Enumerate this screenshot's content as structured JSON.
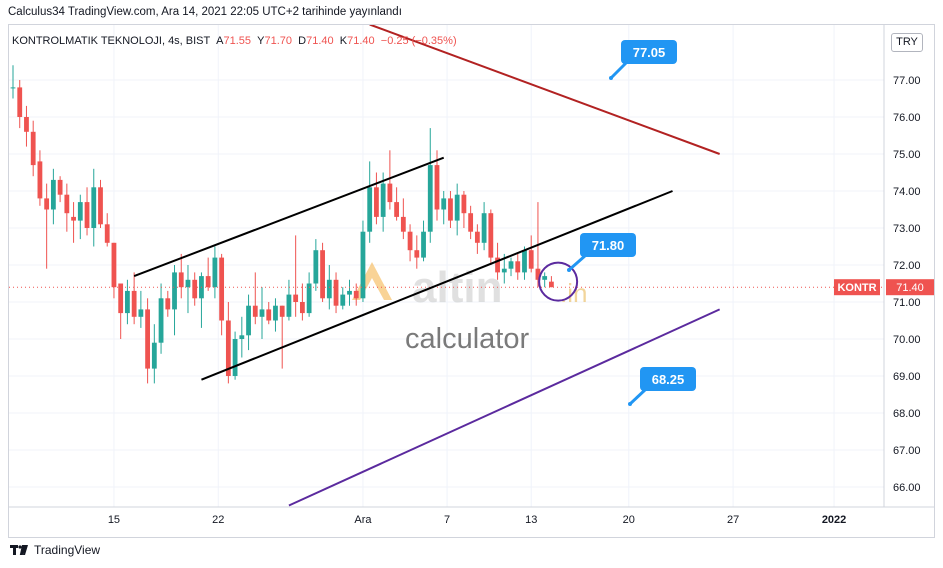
{
  "header": {
    "published": "Calculus34 TradingView.com, Ara 14, 2021 22:05 UTC+2 tarihinde yayınlandı"
  },
  "symbol": {
    "name": "KONTROLMATIK TEKNOLOJI, 4s, BIST",
    "a_label": "A",
    "a_value": "71.55",
    "y_label": "Y",
    "y_value": "71.70",
    "d_label": "D",
    "d_value": "71.40",
    "k_label": "K",
    "k_value": "71.40",
    "change": "−0.25 (−0.35%)"
  },
  "currency_label": "TRY",
  "footer": {
    "brand": "TradingView"
  },
  "colors": {
    "up": "#26a69a",
    "down": "#ef5350",
    "channel": "#000000",
    "red_line": "#b22222",
    "purple_line": "#5b2a9e",
    "callout": "#2196f3",
    "grid": "#f0f3fa",
    "axis_text": "#131722"
  },
  "chart_data": {
    "type": "candlestick",
    "title": "KONTROLMATIK TEKNOLOJI, 4s, BIST",
    "ylim": [
      65.5,
      78.5
    ],
    "x_ticks": [
      "15",
      "22",
      "Ara",
      "7",
      "13",
      "20",
      "27",
      "2022"
    ],
    "y_ticks": [
      "66.00",
      "67.00",
      "68.00",
      "69.00",
      "70.00",
      "71.00",
      "72.00",
      "73.00",
      "74.00",
      "75.00",
      "76.00",
      "77.00"
    ],
    "last_price": {
      "symbol": "KONTR",
      "value": 71.4
    },
    "callouts": [
      "77.05",
      "71.80",
      "68.25"
    ],
    "watermark": {
      "logo": "altin",
      "suffix": ".in",
      "tagline": "calculator"
    },
    "candles": [
      [
        76.8,
        77.4,
        76.5,
        76.8
      ],
      [
        76.8,
        77.0,
        75.7,
        76.0
      ],
      [
        76.0,
        76.3,
        75.2,
        75.6
      ],
      [
        75.6,
        75.9,
        74.4,
        74.7
      ],
      [
        74.8,
        75.1,
        73.6,
        73.8
      ],
      [
        73.8,
        74.2,
        71.9,
        73.5
      ],
      [
        73.5,
        74.6,
        73.1,
        74.3
      ],
      [
        74.3,
        74.4,
        73.7,
        73.9
      ],
      [
        73.9,
        74.2,
        72.9,
        73.4
      ],
      [
        73.3,
        73.7,
        72.6,
        73.2
      ],
      [
        73.2,
        73.9,
        72.7,
        73.7
      ],
      [
        73.7,
        74.1,
        72.8,
        73.0
      ],
      [
        73.0,
        74.6,
        72.5,
        74.1
      ],
      [
        74.1,
        74.3,
        73.0,
        73.1
      ],
      [
        73.1,
        73.4,
        72.5,
        72.6
      ],
      [
        72.6,
        72.6,
        71.1,
        71.4
      ],
      [
        71.5,
        71.5,
        70.0,
        70.7
      ],
      [
        70.7,
        71.6,
        70.4,
        71.3
      ],
      [
        71.3,
        71.8,
        70.4,
        70.6
      ],
      [
        70.6,
        71.3,
        70.3,
        70.8
      ],
      [
        70.8,
        71.1,
        68.8,
        69.2
      ],
      [
        69.2,
        70.4,
        68.8,
        69.9
      ],
      [
        69.9,
        71.5,
        69.6,
        71.1
      ],
      [
        71.1,
        71.3,
        70.6,
        70.8
      ],
      [
        70.8,
        72.0,
        70.1,
        71.8
      ],
      [
        71.8,
        72.3,
        71.1,
        71.4
      ],
      [
        71.4,
        72.0,
        70.7,
        71.6
      ],
      [
        71.6,
        71.8,
        70.9,
        71.1
      ],
      [
        71.1,
        71.8,
        70.3,
        71.7
      ],
      [
        71.7,
        72.2,
        71.3,
        71.4
      ],
      [
        71.4,
        72.5,
        71.1,
        72.2
      ],
      [
        72.2,
        72.3,
        70.1,
        70.5
      ],
      [
        70.5,
        71.0,
        68.8,
        69.0
      ],
      [
        69.0,
        70.2,
        68.9,
        70.0
      ],
      [
        70.0,
        70.6,
        69.5,
        70.1
      ],
      [
        70.1,
        71.2,
        69.7,
        70.9
      ],
      [
        70.9,
        71.8,
        70.4,
        70.6
      ],
      [
        70.6,
        71.4,
        70.0,
        70.8
      ],
      [
        70.8,
        71.0,
        70.4,
        70.5
      ],
      [
        70.5,
        71.1,
        70.2,
        70.9
      ],
      [
        70.9,
        70.9,
        69.2,
        70.6
      ],
      [
        70.6,
        71.6,
        70.5,
        71.2
      ],
      [
        71.2,
        72.8,
        70.6,
        71.0
      ],
      [
        71.0,
        71.5,
        70.5,
        70.7
      ],
      [
        70.7,
        71.8,
        70.6,
        71.5
      ],
      [
        71.5,
        72.7,
        71.3,
        72.4
      ],
      [
        72.4,
        72.6,
        71.0,
        71.1
      ],
      [
        71.1,
        72.0,
        70.8,
        71.6
      ],
      [
        71.6,
        71.8,
        70.7,
        70.9
      ],
      [
        70.9,
        71.4,
        70.8,
        71.2
      ],
      [
        71.2,
        71.6,
        70.9,
        71.3
      ],
      [
        71.3,
        71.5,
        70.9,
        71.1
      ],
      [
        71.1,
        73.2,
        71.0,
        72.9
      ],
      [
        72.9,
        74.8,
        72.6,
        74.1
      ],
      [
        74.1,
        74.5,
        73.1,
        73.3
      ],
      [
        73.3,
        74.5,
        72.9,
        74.2
      ],
      [
        74.2,
        75.1,
        73.5,
        73.7
      ],
      [
        73.7,
        74.1,
        73.2,
        73.3
      ],
      [
        73.3,
        73.8,
        72.7,
        72.9
      ],
      [
        72.9,
        73.1,
        72.1,
        72.4
      ],
      [
        72.4,
        72.8,
        71.9,
        72.2
      ],
      [
        72.2,
        73.2,
        72.1,
        72.9
      ],
      [
        72.9,
        75.7,
        72.6,
        74.7
      ],
      [
        74.7,
        75.1,
        73.2,
        73.5
      ],
      [
        73.5,
        74.0,
        73.1,
        73.8
      ],
      [
        73.8,
        74.0,
        73.0,
        73.2
      ],
      [
        73.2,
        74.2,
        72.8,
        73.9
      ],
      [
        73.9,
        74.0,
        73.0,
        73.4
      ],
      [
        73.4,
        73.6,
        72.7,
        72.9
      ],
      [
        72.9,
        73.1,
        72.3,
        72.6
      ],
      [
        72.6,
        73.7,
        72.4,
        73.4
      ],
      [
        73.4,
        73.5,
        72.0,
        72.2
      ],
      [
        72.2,
        72.6,
        71.6,
        71.8
      ],
      [
        71.8,
        72.3,
        71.5,
        71.9
      ],
      [
        71.9,
        72.2,
        71.7,
        72.1
      ],
      [
        72.1,
        72.3,
        71.6,
        71.8
      ],
      [
        71.8,
        72.5,
        71.6,
        72.4
      ],
      [
        72.4,
        72.8,
        71.8,
        71.9
      ],
      [
        71.9,
        73.7,
        71.4,
        71.6
      ],
      [
        71.6,
        71.8,
        71.4,
        71.7
      ],
      [
        71.55,
        71.7,
        71.4,
        71.4
      ]
    ],
    "lines": [
      {
        "name": "channel-upper",
        "kind": "black",
        "p1": [
          "c18",
          71.7
        ],
        "p2": [
          "c64",
          74.9
        ]
      },
      {
        "name": "channel-lower",
        "kind": "black",
        "p1": [
          "c28",
          68.9
        ],
        "p2": [
          "c98",
          74.0
        ]
      },
      {
        "name": "red-line",
        "kind": "red",
        "p1": [
          "c53",
          78.5
        ],
        "p2": [
          "c105",
          75.0
        ]
      },
      {
        "name": "purple-line",
        "kind": "purple",
        "p1": [
          "c41",
          65.5
        ],
        "p2": [
          "c105",
          70.8
        ]
      }
    ]
  }
}
